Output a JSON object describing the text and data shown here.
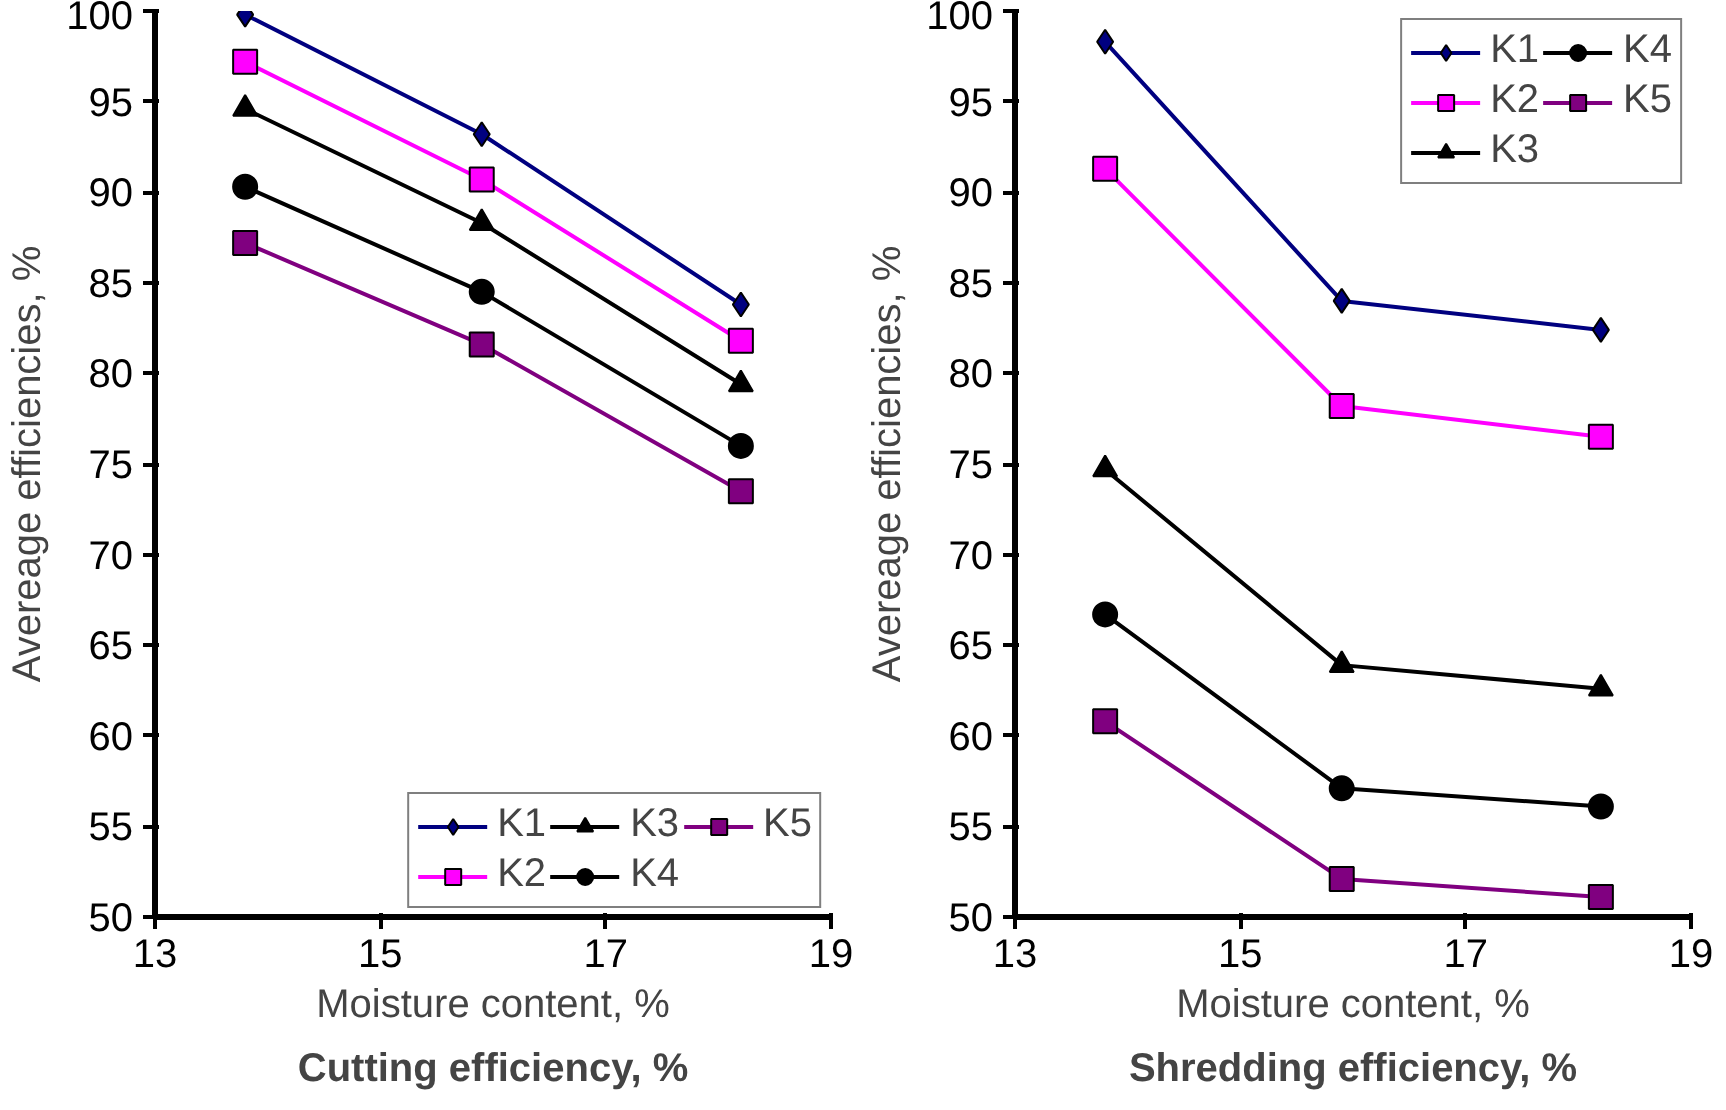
{
  "chart_data": [
    {
      "type": "line",
      "title": "Cutting efficiency, %",
      "xlabel": "Moisture content, %",
      "ylabel": "Avereage efficiencies, %",
      "x": [
        13.8,
        15.9,
        18.2
      ],
      "xlim": [
        13,
        19
      ],
      "xticks": [
        13,
        15,
        17,
        19
      ],
      "ylim": [
        50,
        100
      ],
      "yticks": [
        50,
        55,
        60,
        65,
        70,
        75,
        80,
        85,
        90,
        95,
        100
      ],
      "grid": false,
      "legend": "bottom right",
      "series": [
        {
          "name": "K1",
          "color": "#000080",
          "marker": "diamond",
          "values": [
            99.8,
            93.2,
            83.8
          ]
        },
        {
          "name": "K2",
          "color": "#ff00ff",
          "marker": "square",
          "values": [
            97.2,
            90.7,
            81.8
          ]
        },
        {
          "name": "K3",
          "color": "#000000",
          "marker": "triangle",
          "values": [
            94.6,
            88.3,
            79.4
          ]
        },
        {
          "name": "K4",
          "color": "#000000",
          "marker": "circle",
          "values": [
            90.3,
            84.5,
            76.0
          ]
        },
        {
          "name": "K5",
          "color": "#800080",
          "marker": "square",
          "values": [
            87.2,
            81.6,
            73.5
          ]
        }
      ]
    },
    {
      "type": "line",
      "title": "Shredding efficiency, %",
      "xlabel": "Moisture content, %",
      "ylabel": "Avereage efficiencies, %",
      "x": [
        13.8,
        15.9,
        18.2
      ],
      "xlim": [
        13,
        19
      ],
      "xticks": [
        13,
        15,
        17,
        19
      ],
      "ylim": [
        50,
        100
      ],
      "yticks": [
        50,
        55,
        60,
        65,
        70,
        75,
        80,
        85,
        90,
        95,
        100
      ],
      "grid": false,
      "legend": "top right",
      "series": [
        {
          "name": "K1",
          "color": "#000080",
          "marker": "diamond",
          "values": [
            98.3,
            84.0,
            82.4
          ]
        },
        {
          "name": "K2",
          "color": "#ff00ff",
          "marker": "square",
          "values": [
            91.3,
            78.2,
            76.5
          ]
        },
        {
          "name": "K3",
          "color": "#000000",
          "marker": "triangle",
          "values": [
            74.7,
            63.9,
            62.6
          ]
        },
        {
          "name": "K4",
          "color": "#000000",
          "marker": "circle",
          "values": [
            66.7,
            57.1,
            56.1
          ]
        },
        {
          "name": "K5",
          "color": "#800080",
          "marker": "square",
          "values": [
            60.8,
            52.1,
            51.1
          ]
        }
      ]
    }
  ]
}
